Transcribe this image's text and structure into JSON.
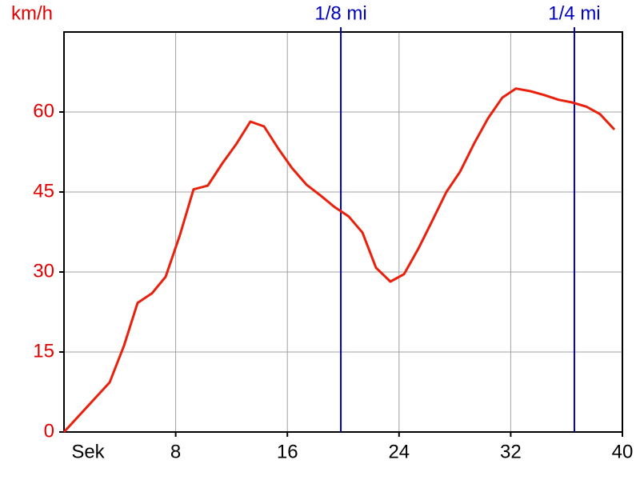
{
  "chart_data": {
    "type": "line",
    "y_label": "km/h",
    "x_label": "Sek",
    "x": [
      0,
      3.27,
      4.3,
      5.27,
      6.3,
      7.28,
      8.3,
      9.28,
      10.3,
      11.35,
      12.32,
      13.35,
      14.33,
      15.36,
      16.33,
      17.36,
      18.4,
      19.37,
      20.4,
      21.38,
      22.35,
      23.38,
      24.36,
      25.39,
      26.36,
      27.39,
      28.37,
      29.4,
      30.37,
      31.4,
      32.38,
      33.41,
      34.38,
      35.42,
      36.39,
      37.42,
      38.4,
      39.43
    ],
    "values": [
      0,
      9.3,
      16.2,
      24.2,
      26,
      29.1,
      36.9,
      45.5,
      46.2,
      50.4,
      53.9,
      58.2,
      57.3,
      53.1,
      49.5,
      46.4,
      44.3,
      42.2,
      40.4,
      37.4,
      30.8,
      28.2,
      29.6,
      34.4,
      39.5,
      45,
      48.8,
      54.2,
      58.8,
      62.7,
      64.4,
      63.9,
      63.2,
      62.3,
      61.8,
      61,
      59.6,
      56.7
    ],
    "color": "#e8200c",
    "xlim": [
      0,
      40
    ],
    "xticks": [
      8,
      16,
      24,
      32,
      40
    ],
    "ylim": [
      0,
      75
    ],
    "yticks": [
      0,
      15,
      30,
      45,
      60
    ],
    "grid": true,
    "markers": [
      {
        "label": "1/8 mi",
        "x": 19.83
      },
      {
        "label": "1/4 mi",
        "x": 36.56
      }
    ],
    "marker_color": "#0000c0"
  }
}
